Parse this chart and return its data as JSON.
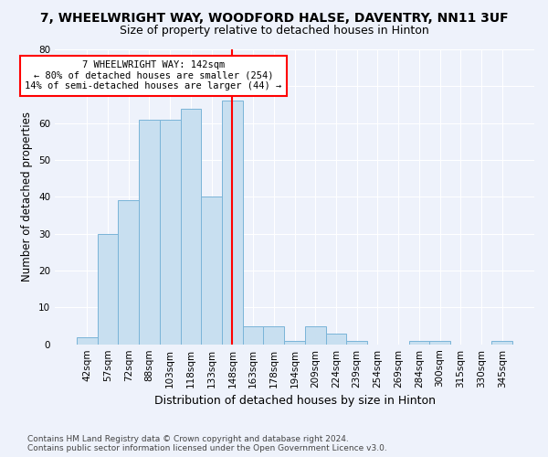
{
  "title": "7, WHEELWRIGHT WAY, WOODFORD HALSE, DAVENTRY, NN11 3UF",
  "subtitle": "Size of property relative to detached houses in Hinton",
  "xlabel": "Distribution of detached houses by size in Hinton",
  "ylabel": "Number of detached properties",
  "bin_labels": [
    "42sqm",
    "57sqm",
    "72sqm",
    "88sqm",
    "103sqm",
    "118sqm",
    "133sqm",
    "148sqm",
    "163sqm",
    "178sqm",
    "194sqm",
    "209sqm",
    "224sqm",
    "239sqm",
    "254sqm",
    "269sqm",
    "284sqm",
    "300sqm",
    "315sqm",
    "330sqm",
    "345sqm"
  ],
  "bar_values": [
    2,
    30,
    39,
    61,
    61,
    64,
    40,
    66,
    5,
    5,
    1,
    5,
    3,
    1,
    0,
    0,
    1,
    1,
    0,
    0,
    1
  ],
  "bar_color": "#c8dff0",
  "bar_edgecolor": "#7ab4d8",
  "annotation_text": "7 WHEELWRIGHT WAY: 142sqm\n← 80% of detached houses are smaller (254)\n14% of semi-detached houses are larger (44) →",
  "annotation_box_color": "white",
  "annotation_box_edgecolor": "red",
  "vline_color": "red",
  "ylim": [
    0,
    80
  ],
  "yticks": [
    0,
    10,
    20,
    30,
    40,
    50,
    60,
    70,
    80
  ],
  "background_color": "#eef2fb",
  "axes_background": "#eef2fb",
  "grid_color": "white",
  "footer_line1": "Contains HM Land Registry data © Crown copyright and database right 2024.",
  "footer_line2": "Contains public sector information licensed under the Open Government Licence v3.0.",
  "title_fontsize": 10,
  "subtitle_fontsize": 9,
  "xlabel_fontsize": 9,
  "ylabel_fontsize": 8.5,
  "tick_fontsize": 7.5,
  "footer_fontsize": 6.5
}
